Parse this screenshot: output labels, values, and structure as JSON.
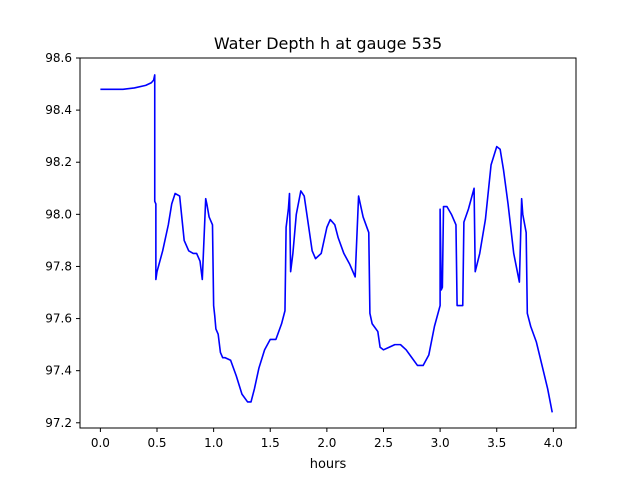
{
  "chart_data": {
    "type": "line",
    "title": "Water Depth h at gauge 535",
    "xlabel": "hours",
    "ylabel": "",
    "xlim": [
      -0.18,
      4.2
    ],
    "ylim": [
      97.18,
      98.6
    ],
    "xticks": [
      0.0,
      0.5,
      1.0,
      1.5,
      2.0,
      2.5,
      3.0,
      3.5,
      4.0
    ],
    "xtick_labels": [
      "0.0",
      "0.5",
      "1.0",
      "1.5",
      "2.0",
      "2.5",
      "3.0",
      "3.5",
      "4.0"
    ],
    "yticks": [
      97.2,
      97.4,
      97.6,
      97.8,
      98.0,
      98.2,
      98.4,
      98.6
    ],
    "ytick_labels": [
      "97.2",
      "97.4",
      "97.6",
      "97.8",
      "98.0",
      "98.2",
      "98.4",
      "98.6"
    ],
    "grid": false,
    "series": [
      {
        "name": "",
        "color": "#0000ff",
        "x": [
          0.0,
          0.1,
          0.2,
          0.3,
          0.4,
          0.45,
          0.47,
          0.48,
          0.48,
          0.49,
          0.49,
          0.5,
          0.55,
          0.6,
          0.63,
          0.66,
          0.7,
          0.74,
          0.78,
          0.82,
          0.85,
          0.88,
          0.9,
          0.93,
          0.94,
          0.96,
          0.99,
          1.0,
          1.01,
          1.02,
          1.04,
          1.06,
          1.08,
          1.1,
          1.15,
          1.2,
          1.25,
          1.3,
          1.33,
          1.36,
          1.4,
          1.45,
          1.5,
          1.55,
          1.6,
          1.63,
          1.64,
          1.66,
          1.67,
          1.68,
          1.7,
          1.73,
          1.77,
          1.8,
          1.83,
          1.87,
          1.9,
          1.95,
          2.0,
          2.03,
          2.07,
          2.1,
          2.15,
          2.2,
          2.25,
          2.28,
          2.29,
          2.32,
          2.37,
          2.38,
          2.4,
          2.45,
          2.47,
          2.5,
          2.55,
          2.6,
          2.65,
          2.7,
          2.75,
          2.8,
          2.85,
          2.9,
          2.95,
          3.0,
          3.0,
          3.01,
          3.02,
          3.03,
          3.06,
          3.1,
          3.14,
          3.15,
          3.2,
          3.21,
          3.25,
          3.3,
          3.31,
          3.35,
          3.4,
          3.45,
          3.5,
          3.53,
          3.56,
          3.6,
          3.65,
          3.7,
          3.72,
          3.73,
          3.76,
          3.77,
          3.8,
          3.85,
          3.9,
          3.95,
          3.99
        ],
        "y": [
          98.48,
          98.48,
          98.48,
          98.485,
          98.495,
          98.505,
          98.515,
          98.535,
          98.05,
          98.04,
          97.75,
          97.78,
          97.86,
          97.96,
          98.04,
          98.08,
          98.07,
          97.9,
          97.86,
          97.85,
          97.85,
          97.82,
          97.75,
          98.06,
          98.04,
          97.99,
          97.96,
          97.65,
          97.61,
          97.56,
          97.54,
          97.47,
          97.45,
          97.45,
          97.44,
          97.38,
          97.31,
          97.28,
          97.28,
          97.33,
          97.41,
          97.48,
          97.52,
          97.52,
          97.58,
          97.63,
          97.95,
          98.02,
          98.08,
          97.78,
          97.85,
          98.0,
          98.09,
          98.07,
          97.98,
          97.86,
          97.83,
          97.85,
          97.95,
          97.98,
          97.96,
          97.91,
          97.85,
          97.81,
          97.76,
          98.07,
          98.05,
          97.99,
          97.93,
          97.62,
          97.58,
          97.55,
          97.49,
          97.48,
          97.49,
          97.5,
          97.5,
          97.48,
          97.45,
          97.42,
          97.42,
          97.46,
          97.57,
          97.65,
          98.02,
          97.71,
          97.72,
          98.03,
          98.03,
          98.0,
          97.96,
          97.65,
          97.65,
          97.97,
          98.02,
          98.1,
          97.78,
          97.85,
          97.98,
          98.19,
          98.26,
          98.25,
          98.17,
          98.04,
          97.85,
          97.74,
          98.06,
          98.0,
          97.93,
          97.62,
          97.57,
          97.51,
          97.42,
          97.33,
          97.24
        ]
      }
    ]
  }
}
